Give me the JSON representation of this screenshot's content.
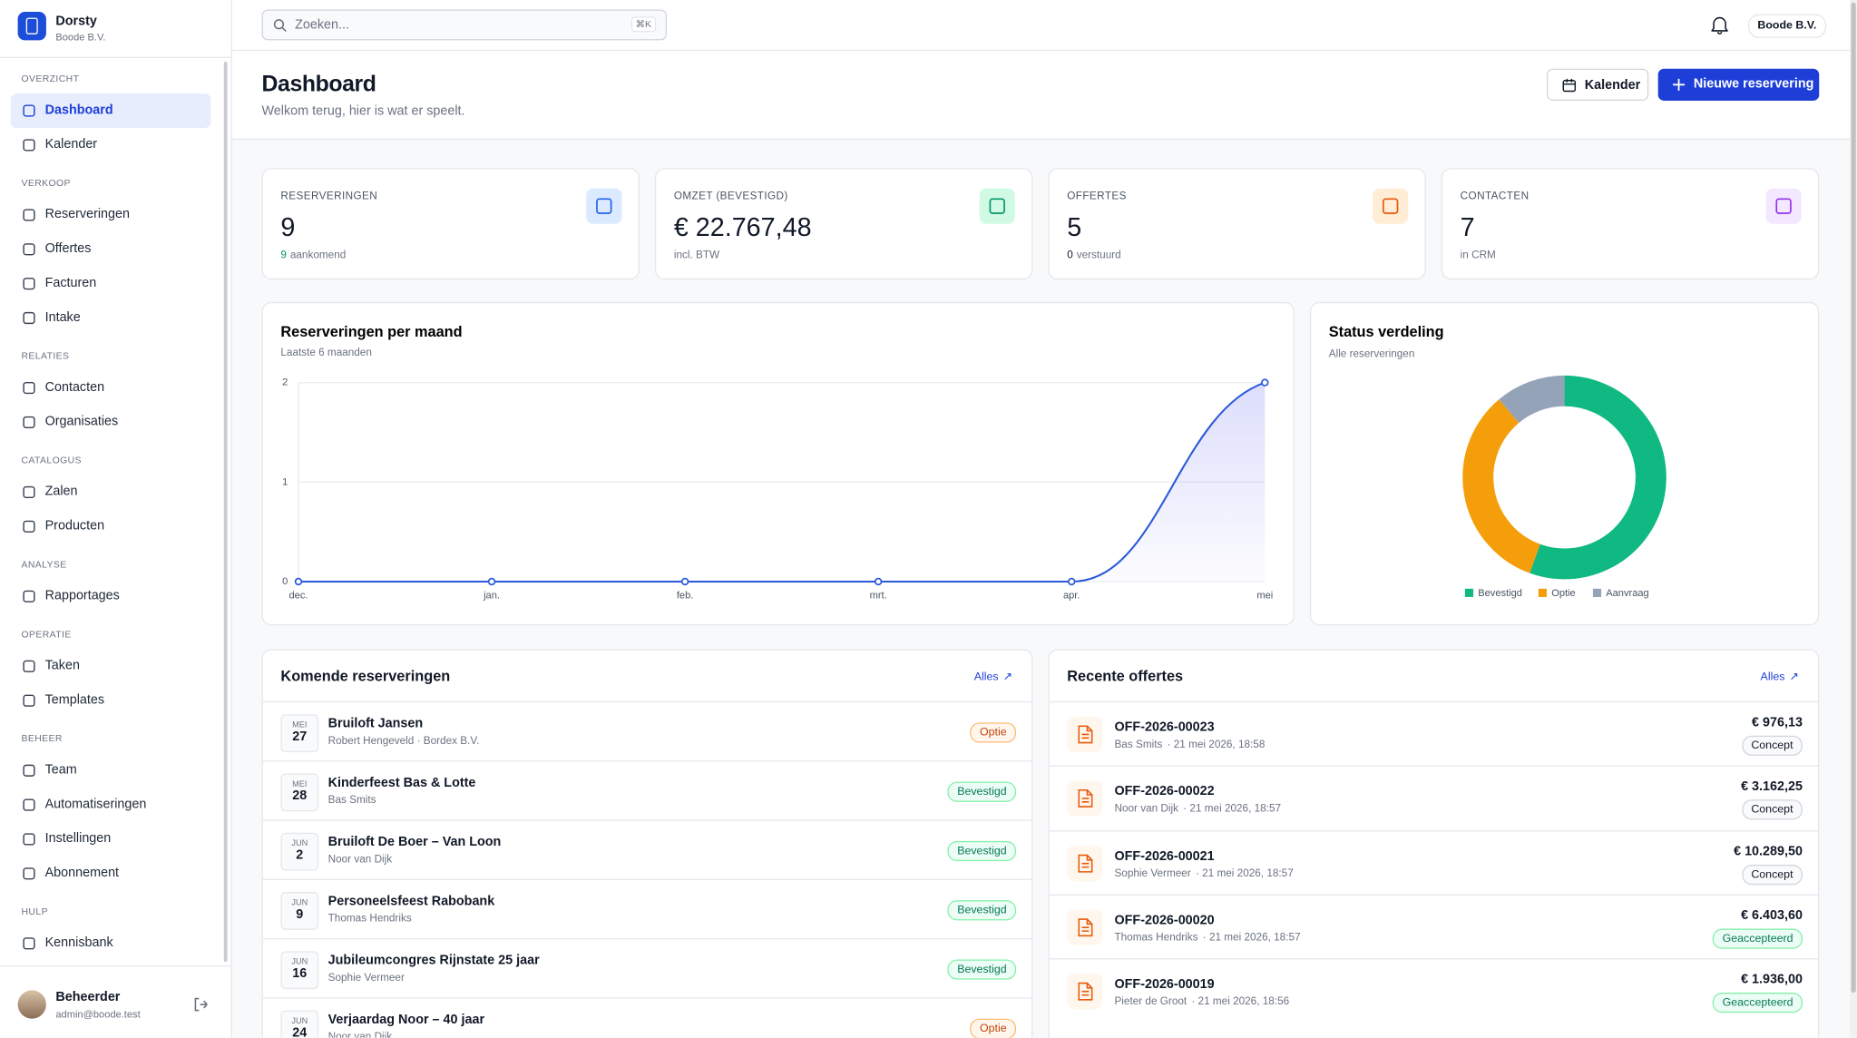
{
  "sidebar": {
    "brand": "Dorsty",
    "org": "Boode B.V.",
    "sections": [
      {
        "label": "OVERZICHT",
        "items": [
          {
            "label": "Dashboard",
            "active": true
          },
          {
            "label": "Kalender"
          }
        ]
      },
      {
        "label": "VERKOOP",
        "items": [
          {
            "label": "Reserveringen"
          },
          {
            "label": "Offertes"
          },
          {
            "label": "Facturen"
          },
          {
            "label": "Intake"
          }
        ]
      },
      {
        "label": "RELATIES",
        "items": [
          {
            "label": "Contacten"
          },
          {
            "label": "Organisaties"
          }
        ]
      },
      {
        "label": "CATALOGUS",
        "items": [
          {
            "label": "Zalen"
          },
          {
            "label": "Producten"
          }
        ]
      },
      {
        "label": "ANALYSE",
        "items": [
          {
            "label": "Rapportages"
          }
        ]
      },
      {
        "label": "OPERATIE",
        "items": [
          {
            "label": "Taken"
          },
          {
            "label": "Templates"
          }
        ]
      },
      {
        "label": "BEHEER",
        "items": [
          {
            "label": "Team"
          },
          {
            "label": "Automatiseringen"
          },
          {
            "label": "Instellingen"
          },
          {
            "label": "Abonnement"
          }
        ]
      },
      {
        "label": "HULP",
        "items": [
          {
            "label": "Kennisbank"
          }
        ]
      }
    ],
    "user": {
      "name": "Beheerder",
      "email": "admin@boode.test"
    }
  },
  "topbar": {
    "search_placeholder": "Zoeken...",
    "shortcut": "⌘K",
    "org": "Boode B.V."
  },
  "header": {
    "title": "Dashboard",
    "subtitle": "Welkom terug, hier is wat er speelt.",
    "buttons": [
      "Kalender",
      "Nieuwe reservering"
    ]
  },
  "stats": [
    {
      "label": "RESERVERINGEN",
      "value": "9",
      "note_value": "9",
      "note": "aankomend"
    },
    {
      "label": "OMZET (BEVESTIGD)",
      "value": "€ 22.767,48",
      "note": "incl. BTW"
    },
    {
      "label": "OFFERTES",
      "value": "5",
      "note_value": "0",
      "note": "verstuurd"
    },
    {
      "label": "CONTACTEN",
      "value": "7",
      "note": "in CRM"
    }
  ],
  "chart_data": [
    {
      "type": "line",
      "title": "Reserveringen per maand",
      "subtitle": "Laatste 6 maanden",
      "categories": [
        "dec.",
        "jan.",
        "feb.",
        "mrt.",
        "apr.",
        "mei"
      ],
      "values": [
        0,
        0,
        0,
        0,
        0,
        2
      ],
      "color": "#2b59d9",
      "ylim": [
        0,
        2
      ],
      "yticks": [
        0,
        1,
        2
      ],
      "grid": true
    },
    {
      "type": "donut",
      "title": "Status verdeling",
      "subtitle": "Alle reserveringen",
      "categories": [
        "Bevestigd",
        "Optie",
        "Aanvraag"
      ],
      "values": [
        5,
        3,
        1
      ],
      "colors": [
        "#10b981",
        "#f59e0b",
        "#94a3b8"
      ],
      "legend": "bottom"
    }
  ],
  "upcoming": {
    "title": "Komende reserveringen",
    "link": "Alles",
    "rows": [
      {
        "month": "MEI",
        "day": "27",
        "name": "Bruiloft Jansen",
        "sub": "Robert Hengeveld · Bordex B.V.",
        "status": "Optie"
      },
      {
        "month": "MEI",
        "day": "28",
        "name": "Kinderfeest Bas & Lotte",
        "sub": "Bas Smits",
        "status": "Bevestigd"
      },
      {
        "month": "JUN",
        "day": "2",
        "name": "Bruiloft De Boer – Van Loon",
        "sub": "Noor van Dijk",
        "status": "Bevestigd"
      },
      {
        "month": "JUN",
        "day": "9",
        "name": "Personeelsfeest Rabobank",
        "sub": "Thomas Hendriks",
        "status": "Bevestigd"
      },
      {
        "month": "JUN",
        "day": "16",
        "name": "Jubileumcongres Rijnstate 25 jaar",
        "sub": "Sophie Vermeer",
        "status": "Bevestigd"
      },
      {
        "month": "JUN",
        "day": "24",
        "name": "Verjaardag Noor – 40 jaar",
        "sub": "Noor van Dijk",
        "status": "Optie"
      }
    ]
  },
  "quotes": {
    "title": "Recente offertes",
    "link": "Alles",
    "rows": [
      {
        "number": "OFF-2026-00023",
        "client": "Bas Smits",
        "date": "· 21 mei 2026, 18:58",
        "amount": "€ 976,13",
        "status": "Concept"
      },
      {
        "number": "OFF-2026-00022",
        "client": "Noor van Dijk",
        "date": "· 21 mei 2026, 18:57",
        "amount": "€ 3.162,25",
        "status": "Concept"
      },
      {
        "number": "OFF-2026-00021",
        "client": "Sophie Vermeer",
        "date": "· 21 mei 2026, 18:57",
        "amount": "€ 10.289,50",
        "status": "Concept"
      },
      {
        "number": "OFF-2026-00020",
        "client": "Thomas Hendriks",
        "date": "· 21 mei 2026, 18:57",
        "amount": "€ 6.403,60",
        "status": "Geaccepteerd"
      },
      {
        "number": "OFF-2026-00019",
        "client": "Pieter de Groot",
        "date": "· 21 mei 2026, 18:56",
        "amount": "€ 1.936,00",
        "status": "Geaccepteerd"
      }
    ]
  }
}
